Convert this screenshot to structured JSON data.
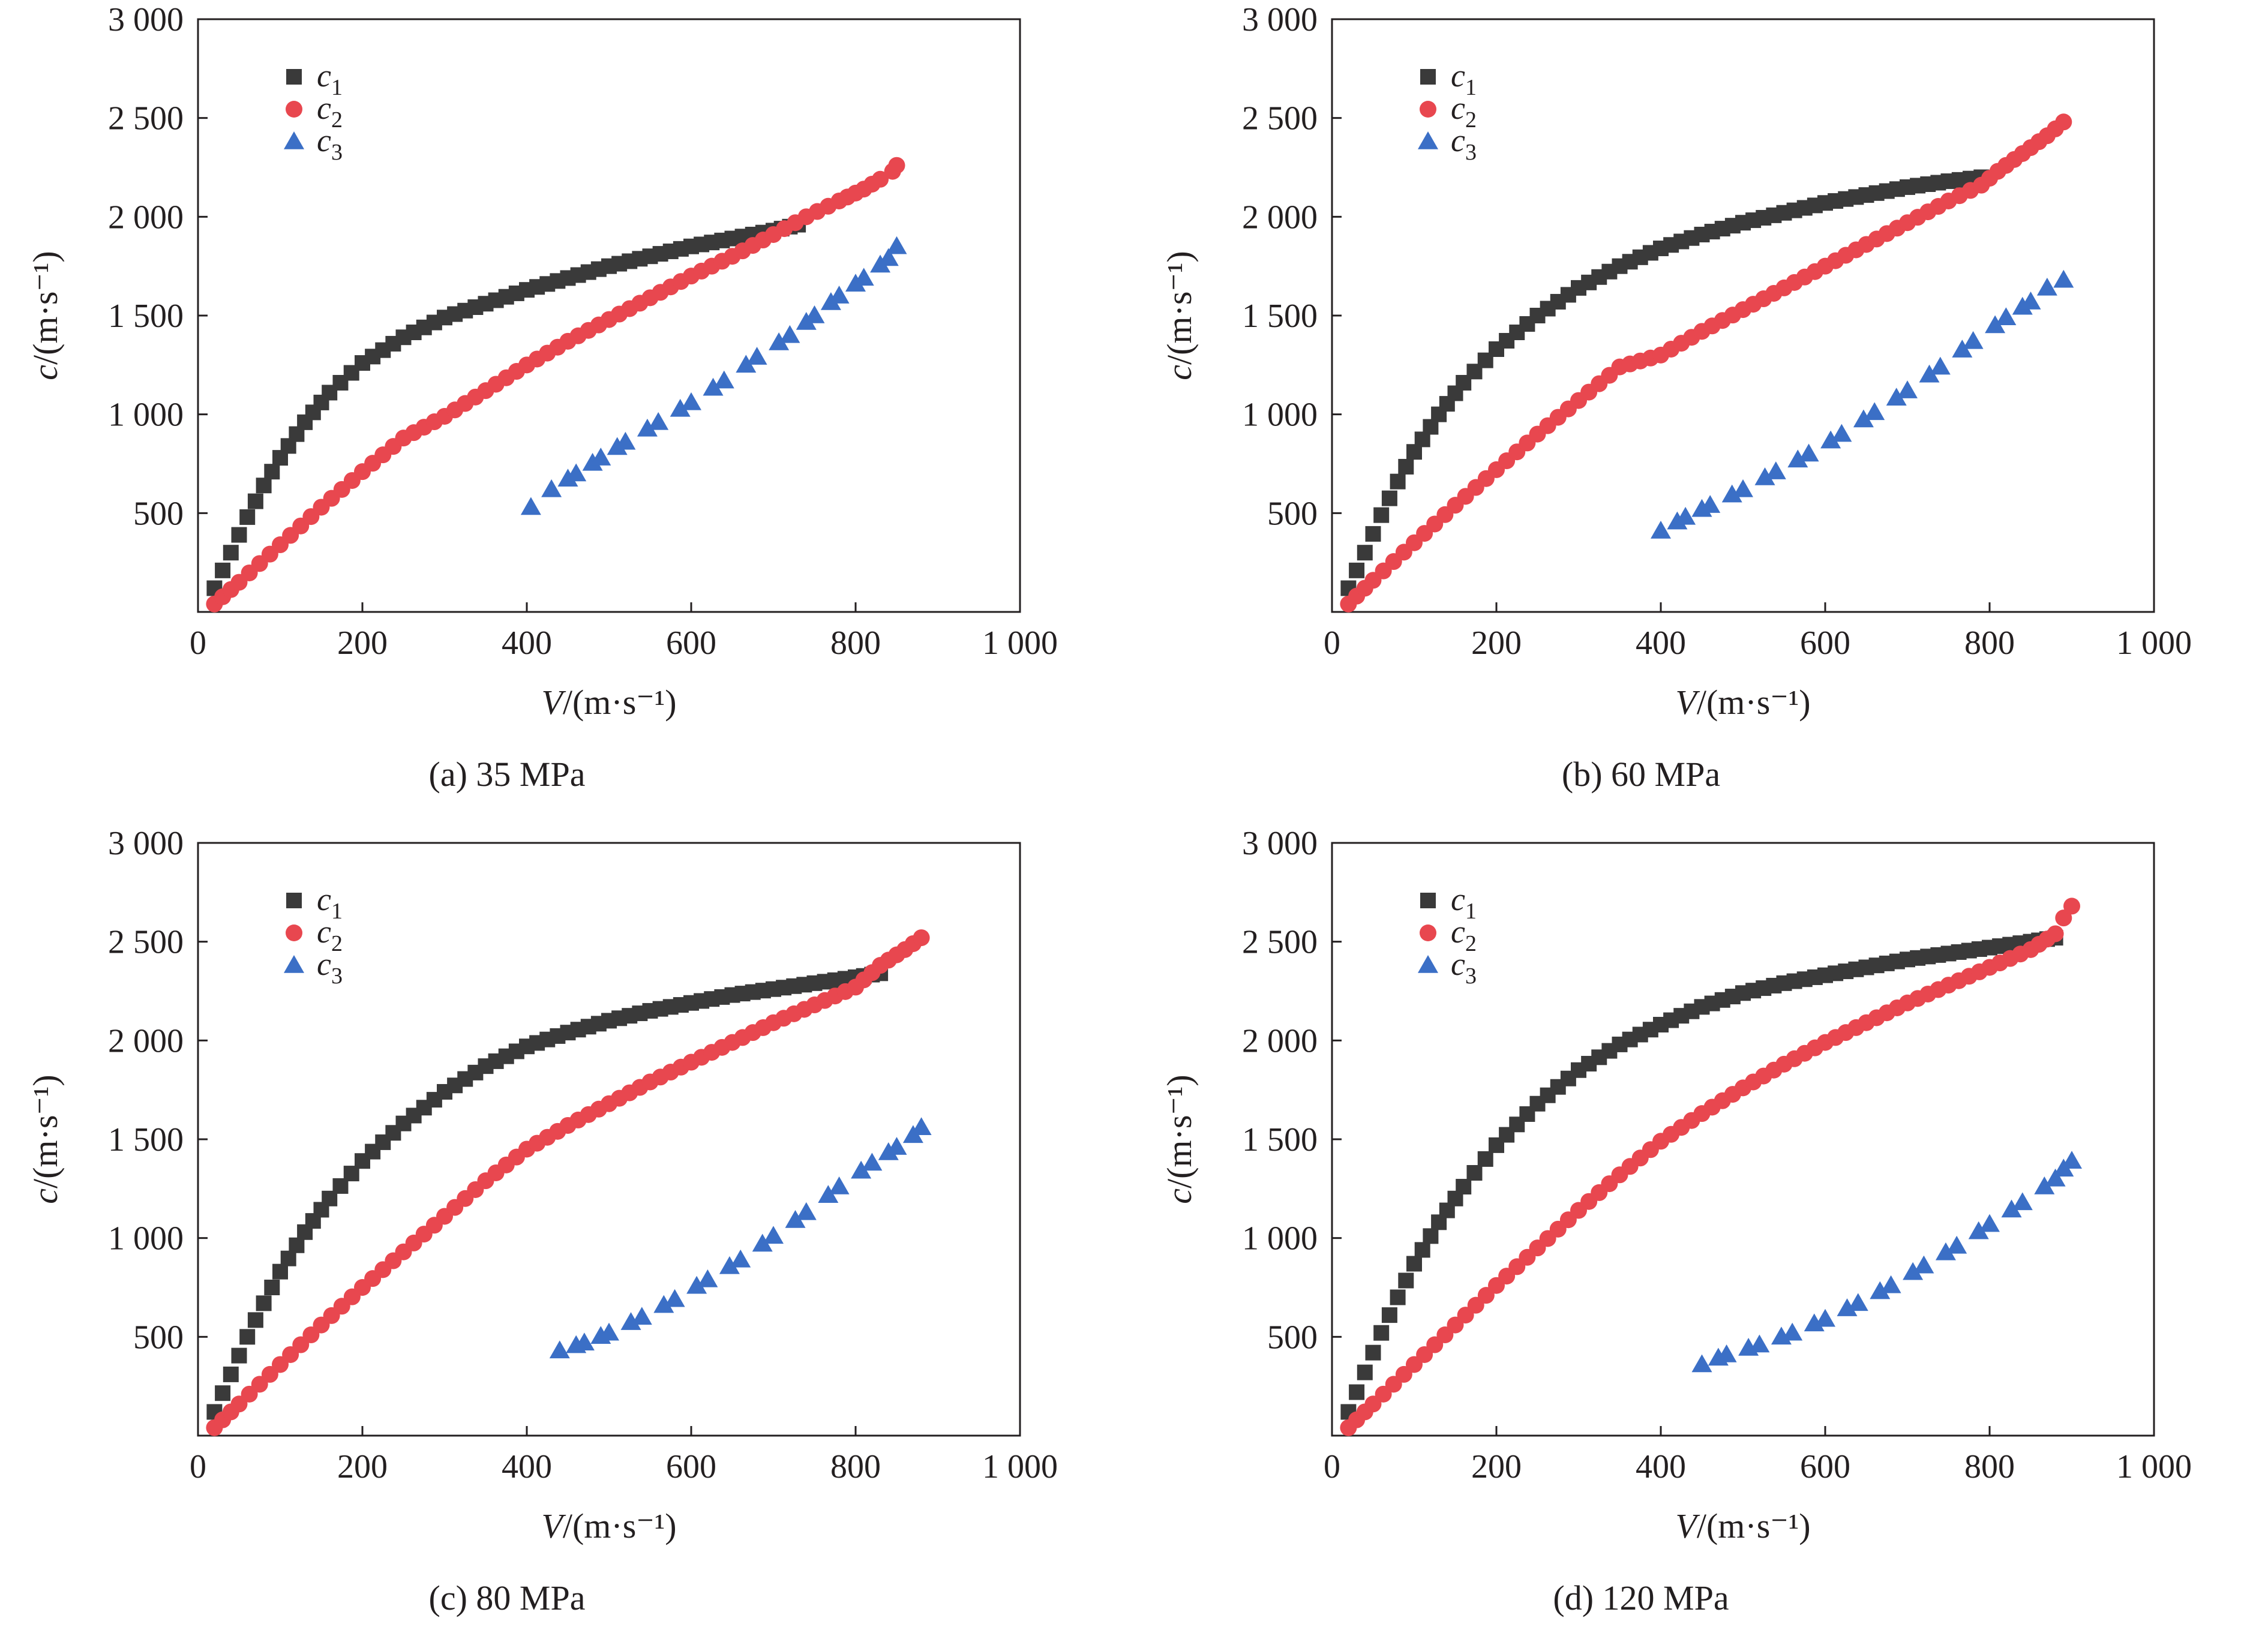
{
  "chart_data": [
    {
      "type": "scatter",
      "caption": "(a) 35 MPa",
      "xlabel": "V/(m·s⁻¹)",
      "ylabel": "c/(m·s⁻¹)",
      "xlim": [
        0,
        1000
      ],
      "ylim": [
        0,
        3000
      ],
      "xticks": [
        0,
        200,
        400,
        600,
        800,
        1000
      ],
      "xtick_labels": [
        "0",
        "200",
        "400",
        "600",
        "800",
        "1 000"
      ],
      "yticks": [
        500,
        1000,
        1500,
        2000,
        2500,
        3000
      ],
      "ytick_labels": [
        "500",
        "1 000",
        "1 500",
        "2 000",
        "2 500",
        "3 000"
      ],
      "legend_position": "upper-left",
      "series": [
        {
          "name": "c1",
          "color": "#3a3a3a",
          "marker": "square",
          "x": [
            20,
            40,
            60,
            80,
            100,
            130,
            160,
            200,
            250,
            300,
            350,
            400,
            450,
            500,
            550,
            600,
            650,
            700,
            730
          ],
          "y": [
            120,
            300,
            480,
            640,
            780,
            960,
            1110,
            1260,
            1390,
            1490,
            1560,
            1630,
            1690,
            1750,
            1800,
            1850,
            1890,
            1930,
            1960
          ]
        },
        {
          "name": "c2",
          "color": "#e8474f",
          "marker": "circle",
          "x": [
            20,
            50,
            100,
            150,
            200,
            250,
            300,
            350,
            400,
            450,
            500,
            550,
            600,
            650,
            700,
            740,
            780,
            810,
            830,
            845,
            850
          ],
          "y": [
            40,
            150,
            340,
            530,
            710,
            880,
            990,
            1120,
            1250,
            1370,
            1480,
            1590,
            1700,
            1800,
            1910,
            2000,
            2080,
            2140,
            2190,
            2230,
            2260
          ]
        },
        {
          "name": "c3",
          "color": "#3b6fc6",
          "marker": "triangle",
          "x": [
            405,
            430,
            460,
            490,
            520,
            560,
            600,
            640,
            680,
            720,
            750,
            780,
            810,
            840,
            850
          ],
          "y": [
            530,
            620,
            700,
            780,
            860,
            960,
            1060,
            1170,
            1290,
            1400,
            1500,
            1600,
            1690,
            1790,
            1850
          ]
        }
      ]
    },
    {
      "type": "scatter",
      "caption": "(b) 60 MPa",
      "xlabel": "V/(m·s⁻¹)",
      "ylabel": "c/(m·s⁻¹)",
      "xlim": [
        0,
        1000
      ],
      "ylim": [
        0,
        3000
      ],
      "xticks": [
        0,
        200,
        400,
        600,
        800,
        1000
      ],
      "xtick_labels": [
        "0",
        "200",
        "400",
        "600",
        "800",
        "1 000"
      ],
      "yticks": [
        500,
        1000,
        1500,
        2000,
        2500,
        3000
      ],
      "ytick_labels": [
        "500",
        "1 000",
        "1 500",
        "2 000",
        "2 500",
        "3 000"
      ],
      "legend_position": "upper-left",
      "series": [
        {
          "name": "c1",
          "color": "#3a3a3a",
          "marker": "square",
          "x": [
            20,
            40,
            60,
            80,
            100,
            130,
            160,
            200,
            250,
            300,
            350,
            400,
            450,
            500,
            550,
            600,
            650,
            700,
            750,
            790
          ],
          "y": [
            120,
            300,
            490,
            660,
            810,
            1000,
            1160,
            1330,
            1500,
            1640,
            1750,
            1840,
            1910,
            1970,
            2020,
            2070,
            2110,
            2150,
            2180,
            2200
          ]
        },
        {
          "name": "c2",
          "color": "#e8474f",
          "marker": "circle",
          "x": [
            20,
            50,
            100,
            150,
            200,
            250,
            300,
            350,
            400,
            450,
            500,
            550,
            600,
            650,
            700,
            750,
            790,
            810,
            840,
            870,
            890
          ],
          "y": [
            40,
            160,
            350,
            540,
            720,
            900,
            1070,
            1240,
            1300,
            1420,
            1530,
            1640,
            1750,
            1860,
            1970,
            2080,
            2160,
            2230,
            2320,
            2410,
            2480
          ]
        },
        {
          "name": "c3",
          "color": "#3b6fc6",
          "marker": "triangle",
          "x": [
            400,
            430,
            460,
            500,
            540,
            580,
            620,
            660,
            700,
            740,
            780,
            820,
            850,
            870,
            890
          ],
          "y": [
            410,
            480,
            540,
            620,
            710,
            800,
            900,
            1010,
            1120,
            1240,
            1370,
            1490,
            1570,
            1640,
            1680
          ]
        }
      ]
    },
    {
      "type": "scatter",
      "caption": "(c) 80 MPa",
      "xlabel": "V/(m·s⁻¹)",
      "ylabel": "c/(m·s⁻¹)",
      "xlim": [
        0,
        1000
      ],
      "ylim": [
        0,
        3000
      ],
      "xticks": [
        0,
        200,
        400,
        600,
        800,
        1000
      ],
      "xtick_labels": [
        "0",
        "200",
        "400",
        "600",
        "800",
        "1 000"
      ],
      "yticks": [
        500,
        1000,
        1500,
        2000,
        2500,
        3000
      ],
      "ytick_labels": [
        "500",
        "1 000",
        "1 500",
        "2 000",
        "2 500",
        "3 000"
      ],
      "legend_position": "upper-left",
      "series": [
        {
          "name": "c1",
          "color": "#3a3a3a",
          "marker": "square",
          "x": [
            20,
            40,
            60,
            80,
            100,
            130,
            160,
            200,
            250,
            300,
            350,
            400,
            450,
            500,
            550,
            600,
            650,
            700,
            750,
            800,
            830
          ],
          "y": [
            120,
            310,
            500,
            670,
            830,
            1030,
            1200,
            1390,
            1580,
            1740,
            1870,
            1970,
            2040,
            2100,
            2150,
            2190,
            2230,
            2260,
            2290,
            2320,
            2340
          ]
        },
        {
          "name": "c2",
          "color": "#e8474f",
          "marker": "circle",
          "x": [
            20,
            50,
            100,
            150,
            200,
            250,
            300,
            350,
            400,
            450,
            500,
            550,
            600,
            650,
            700,
            750,
            800,
            830,
            860,
            880
          ],
          "y": [
            40,
            160,
            360,
            560,
            750,
            930,
            1110,
            1290,
            1450,
            1570,
            1680,
            1790,
            1890,
            1990,
            2090,
            2180,
            2270,
            2380,
            2460,
            2520
          ]
        },
        {
          "name": "c3",
          "color": "#3b6fc6",
          "marker": "triangle",
          "x": [
            440,
            470,
            500,
            540,
            580,
            620,
            660,
            700,
            740,
            780,
            820,
            850,
            870,
            880
          ],
          "y": [
            430,
            470,
            520,
            600,
            690,
            790,
            890,
            1010,
            1130,
            1260,
            1380,
            1460,
            1520,
            1560
          ]
        }
      ]
    },
    {
      "type": "scatter",
      "caption": "(d) 120 MPa",
      "xlabel": "V/(m·s⁻¹)",
      "ylabel": "c/(m·s⁻¹)",
      "xlim": [
        0,
        1000
      ],
      "ylim": [
        0,
        3000
      ],
      "xticks": [
        0,
        200,
        400,
        600,
        800,
        1000
      ],
      "xtick_labels": [
        "0",
        "200",
        "400",
        "600",
        "800",
        "1 000"
      ],
      "yticks": [
        500,
        1000,
        1500,
        2000,
        2500,
        3000
      ],
      "ytick_labels": [
        "500",
        "1 000",
        "1 500",
        "2 000",
        "2 500",
        "3 000"
      ],
      "legend_position": "upper-left",
      "series": [
        {
          "name": "c1",
          "color": "#3a3a3a",
          "marker": "square",
          "x": [
            20,
            40,
            60,
            80,
            100,
            130,
            160,
            200,
            250,
            300,
            350,
            400,
            450,
            500,
            550,
            600,
            650,
            700,
            750,
            800,
            850,
            880
          ],
          "y": [
            120,
            320,
            520,
            700,
            870,
            1080,
            1260,
            1470,
            1680,
            1850,
            1980,
            2080,
            2170,
            2240,
            2290,
            2330,
            2370,
            2410,
            2440,
            2470,
            2500,
            2520
          ]
        },
        {
          "name": "c2",
          "color": "#e8474f",
          "marker": "circle",
          "x": [
            20,
            50,
            100,
            150,
            200,
            250,
            300,
            350,
            400,
            450,
            500,
            550,
            600,
            650,
            700,
            750,
            800,
            850,
            880,
            890,
            900
          ],
          "y": [
            40,
            160,
            360,
            560,
            760,
            950,
            1140,
            1320,
            1490,
            1630,
            1760,
            1880,
            1990,
            2090,
            2190,
            2280,
            2370,
            2460,
            2540,
            2620,
            2680
          ]
        },
        {
          "name": "c3",
          "color": "#3b6fc6",
          "marker": "triangle",
          "x": [
            450,
            480,
            520,
            560,
            600,
            640,
            680,
            720,
            760,
            800,
            840,
            880,
            890,
            900
          ],
          "y": [
            360,
            410,
            460,
            520,
            590,
            670,
            760,
            860,
            960,
            1070,
            1180,
            1300,
            1350,
            1390
          ]
        }
      ]
    }
  ]
}
